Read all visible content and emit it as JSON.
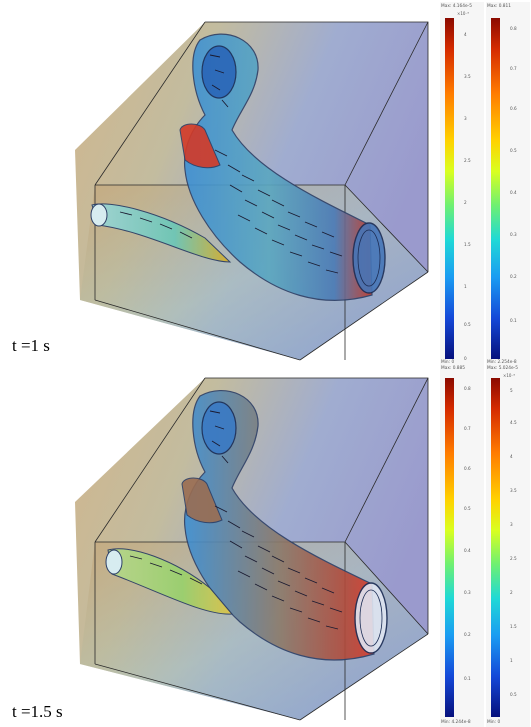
{
  "figure": {
    "panels": [
      {
        "time_label": "t =1 s",
        "legends": [
          {
            "max": "Max: 4.164e-5",
            "min": "Min: 0",
            "exponent": "×10⁻⁵",
            "ticks": [
              "4",
              "3.5",
              "3",
              "2.5",
              "2",
              "1.5",
              "1",
              "0.5",
              "0"
            ]
          },
          {
            "max": "Max: 0.811",
            "min": "Min: 2.254e-8",
            "exponent": "",
            "ticks": [
              "0.8",
              "0.7",
              "0.6",
              "0.5",
              "0.4",
              "0.3",
              "0.2",
              "0.1"
            ]
          }
        ]
      },
      {
        "time_label": "t =1.5 s",
        "legends": [
          {
            "max": "Max: 0.885",
            "min": "Min: 4.244e-8",
            "exponent": "",
            "ticks": [
              "0.8",
              "0.7",
              "0.6",
              "0.5",
              "0.4",
              "0.3",
              "0.2",
              "0.1"
            ]
          },
          {
            "max": "Max: 5.024e-5",
            "min": "Min: 0",
            "exponent": "×10⁻⁵",
            "ticks": [
              "5",
              "4.5",
              "4",
              "3.5",
              "3",
              "2.5",
              "2",
              "1.5",
              "1",
              "0.5"
            ]
          }
        ]
      }
    ],
    "colors": {
      "colormap_top": "#8b0a00",
      "colormap_bottom": "#06107c",
      "box_edge": "#2a2a2a",
      "vessel_wall": "#2d3f66"
    }
  }
}
